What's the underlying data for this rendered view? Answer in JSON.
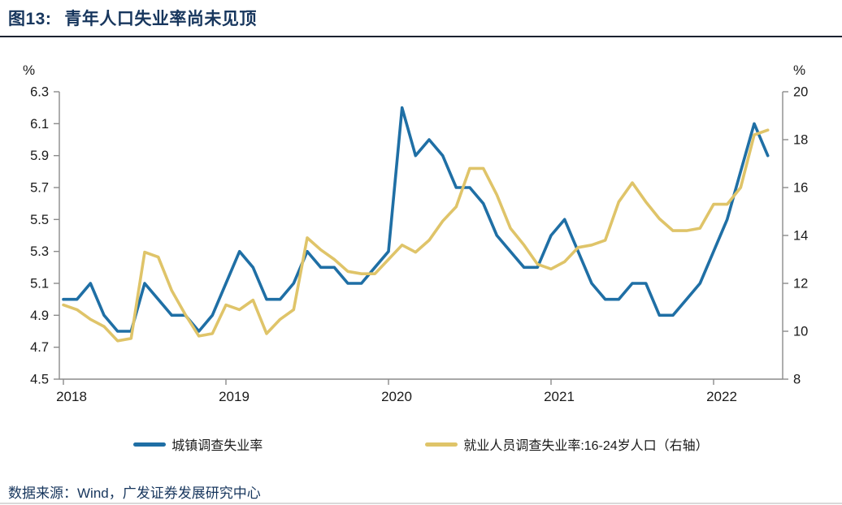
{
  "header": {
    "figure_label": "图13:",
    "title": "青年人口失业率尚未见顶"
  },
  "footer": {
    "source": "数据来源：Wind，广发证券发展研究中心"
  },
  "colors": {
    "navy_text": "#17365D",
    "series_blue": "#1F6FA5",
    "series_yellow": "#DFC469",
    "axis_gray": "#8C8C8C",
    "tick_label": "#1A1A1A"
  },
  "chart_data": {
    "type": "line",
    "frequency": "monthly",
    "x_start": "2018-01",
    "x_end": "2022-05",
    "x_tick_labels": [
      "2018",
      "2019",
      "2020",
      "2021",
      "2022"
    ],
    "grid": false,
    "legend_position": "bottom",
    "left_axis": {
      "unit": "%",
      "min": 4.5,
      "max": 6.3,
      "ticks": [
        "6.3",
        "6.1",
        "5.9",
        "5.7",
        "5.5",
        "5.3",
        "5.1",
        "4.9",
        "4.7",
        "4.5"
      ]
    },
    "right_axis": {
      "unit": "%",
      "min": 8,
      "max": 20,
      "ticks": [
        "20",
        "18",
        "16",
        "14",
        "12",
        "10",
        "8"
      ]
    },
    "series": [
      {
        "name": "城镇调查失业率",
        "axis": "left",
        "color": "#1F6FA5",
        "values": [
          5.0,
          5.0,
          5.1,
          4.9,
          4.8,
          4.8,
          5.1,
          5.0,
          4.9,
          4.9,
          4.8,
          4.9,
          5.1,
          5.3,
          5.2,
          5.0,
          5.0,
          5.1,
          5.3,
          5.2,
          5.2,
          5.1,
          5.1,
          5.2,
          5.3,
          6.2,
          5.9,
          6.0,
          5.9,
          5.7,
          5.7,
          5.6,
          5.4,
          5.3,
          5.2,
          5.2,
          5.4,
          5.5,
          5.3,
          5.1,
          5.0,
          5.0,
          5.1,
          5.1,
          4.9,
          4.9,
          5.0,
          5.1,
          5.3,
          5.5,
          5.8,
          6.1,
          5.9
        ]
      },
      {
        "name": "就业人员调查失业率:16-24岁人口（右轴）",
        "axis": "right",
        "color": "#DFC469",
        "values": [
          11.1,
          10.9,
          10.5,
          10.2,
          9.6,
          9.7,
          13.3,
          13.1,
          11.7,
          10.7,
          9.8,
          9.9,
          11.1,
          10.9,
          11.3,
          9.9,
          10.5,
          10.9,
          13.9,
          13.4,
          13.0,
          12.5,
          12.4,
          12.4,
          13.0,
          13.6,
          13.3,
          13.8,
          14.6,
          15.2,
          16.8,
          16.8,
          15.7,
          14.3,
          13.6,
          12.8,
          12.6,
          12.9,
          13.5,
          13.6,
          13.8,
          15.4,
          16.2,
          15.4,
          14.7,
          14.2,
          14.2,
          14.3,
          15.3,
          15.3,
          16.0,
          18.2,
          18.4
        ]
      }
    ]
  }
}
